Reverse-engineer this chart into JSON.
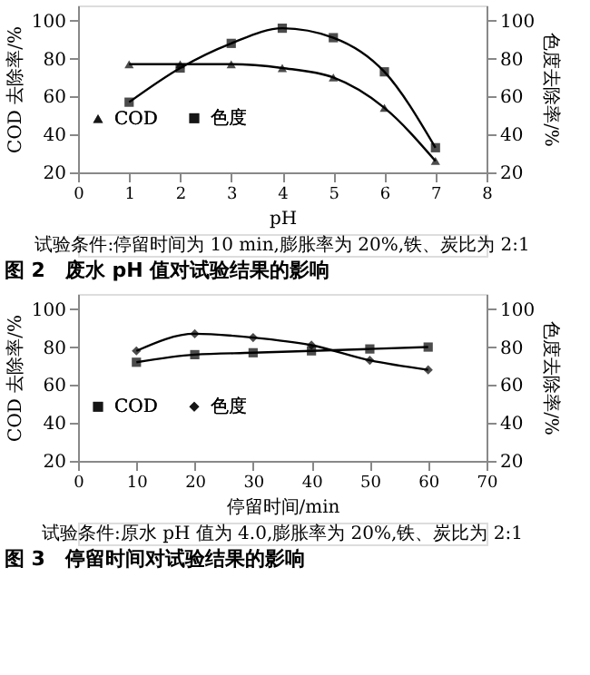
{
  "chart_data": [
    {
      "type": "line",
      "title": "图 2　废水 pH 值对试验结果的影响",
      "xlabel": "pH",
      "ylabel": "COD 去除率/%",
      "y2label": "色度去除率/%",
      "x": [
        1,
        2,
        3,
        4,
        5,
        6,
        7
      ],
      "series": [
        {
          "name": "COD",
          "color": "#000000",
          "marker": "triangle",
          "values": [
            77,
            77,
            77,
            75,
            70,
            54,
            26
          ]
        },
        {
          "name": "色度",
          "color": "#000000",
          "marker": "square",
          "axis": "y2",
          "values": [
            57,
            75,
            88,
            96,
            91,
            73,
            33
          ]
        }
      ],
      "xlim": [
        0,
        8
      ],
      "xticks": [
        0,
        1,
        2,
        3,
        4,
        5,
        6,
        7,
        8
      ],
      "ylim": [
        20,
        108
      ],
      "yticks": [
        20,
        40,
        60,
        80,
        100
      ],
      "y2lim": [
        20,
        108
      ],
      "y2ticks": [
        20,
        40,
        60,
        80,
        100
      ],
      "annotations": [
        "试验条件:停留时间为 10 min,膨胀率为 20%,铁、炭比为 2:1"
      ],
      "legend": "left",
      "grid": false,
      "line_style": "solid"
    },
    {
      "type": "line",
      "title": "图 3　停留时间对试验结果的影响",
      "xlabel": "停留时间/min",
      "ylabel": "COD 去除率/%",
      "y2label": "色度去除率/%",
      "x": [
        10,
        20,
        30,
        40,
        50,
        60
      ],
      "series": [
        {
          "name": "COD",
          "color": "#000000",
          "marker": "square",
          "values": [
            72,
            76,
            77,
            78,
            79,
            80
          ]
        },
        {
          "name": "色度",
          "color": "#000000",
          "marker": "diamond",
          "axis": "y2",
          "values": [
            78,
            87,
            85,
            81,
            73,
            68
          ]
        }
      ],
      "xlim": [
        0,
        70
      ],
      "xticks": [
        0,
        10,
        20,
        30,
        40,
        50,
        60,
        70
      ],
      "ylim": [
        20,
        108
      ],
      "yticks": [
        20,
        40,
        60,
        80,
        100
      ],
      "y2lim": [
        20,
        108
      ],
      "y2ticks": [
        20,
        40,
        60,
        80,
        100
      ],
      "annotations": [
        "试验条件:原水 pH 值为 4.0,膨胀率为 20%,铁、炭比为 2:1"
      ],
      "legend": "left",
      "grid": false,
      "line_style": "solid"
    }
  ]
}
